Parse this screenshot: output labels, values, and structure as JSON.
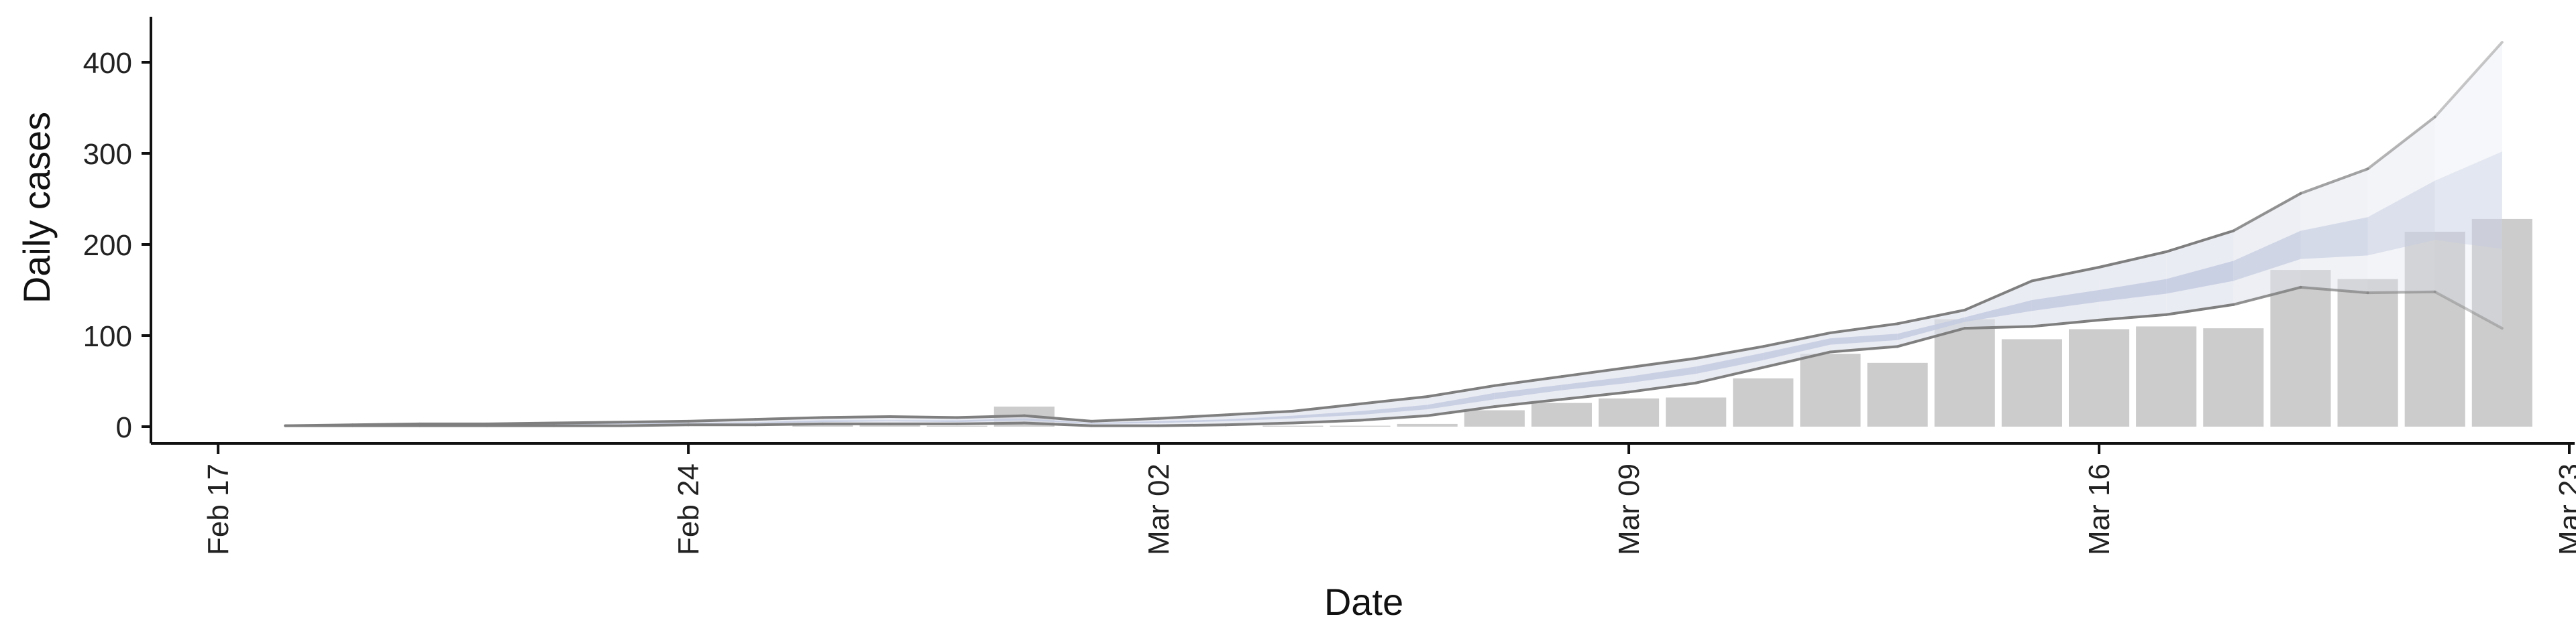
{
  "chart_data": {
    "type": "bar",
    "title": "",
    "xlabel": "Date",
    "ylabel": "Daily cases",
    "ylim": [
      -20,
      445
    ],
    "xlim": [
      "2020-02-16",
      "2020-03-23"
    ],
    "grid": false,
    "legend": "none",
    "yticks": [
      0,
      100,
      200,
      300,
      400
    ],
    "yticklabels": [
      "0",
      "100",
      "200",
      "300",
      "400"
    ],
    "xticks": [
      "2020-02-17",
      "2020-02-24",
      "2020-03-02",
      "2020-03-09",
      "2020-03-16",
      "2020-03-23"
    ],
    "xticklabels": [
      "Feb 17",
      "Feb 24",
      "Mar 02",
      "Mar 09",
      "Mar 16",
      "Mar 23"
    ],
    "colors": {
      "bars": "#cccccc",
      "outer_band": "#dfe2ec",
      "inner_band": "#c4cbe0",
      "lines": "#7f7f7f",
      "axis": "#111111"
    },
    "dates": [
      "2020-02-18",
      "2020-02-19",
      "2020-02-20",
      "2020-02-21",
      "2020-02-22",
      "2020-02-23",
      "2020-02-24",
      "2020-02-25",
      "2020-02-26",
      "2020-02-27",
      "2020-02-28",
      "2020-02-29",
      "2020-03-01",
      "2020-03-02",
      "2020-03-03",
      "2020-03-04",
      "2020-03-05",
      "2020-03-06",
      "2020-03-07",
      "2020-03-08",
      "2020-03-09",
      "2020-03-10",
      "2020-03-11",
      "2020-03-12",
      "2020-03-13",
      "2020-03-14",
      "2020-03-15",
      "2020-03-16",
      "2020-03-17",
      "2020-03-18",
      "2020-03-19",
      "2020-03-20",
      "2020-03-21",
      "2020-03-22"
    ],
    "daily_cases": [
      0,
      0,
      0,
      0,
      0,
      0,
      0,
      0,
      4,
      2,
      1,
      22,
      0,
      0,
      0,
      1,
      1,
      3,
      18,
      26,
      31,
      32,
      53,
      80,
      70,
      118,
      96,
      107,
      110,
      108,
      172,
      162,
      214,
      228
    ],
    "outer_lower": [
      1,
      1,
      1,
      1,
      1,
      1,
      2,
      2,
      3,
      3,
      3,
      4,
      1,
      1,
      2,
      4,
      7,
      12,
      22,
      30,
      38,
      48,
      65,
      82,
      88,
      108,
      110,
      117,
      123,
      134,
      153,
      147,
      148,
      108
    ],
    "outer_upper": [
      1,
      2,
      3,
      3,
      4,
      5,
      6,
      8,
      10,
      11,
      10,
      12,
      6,
      9,
      13,
      17,
      25,
      33,
      45,
      55,
      65,
      75,
      88,
      103,
      113,
      128,
      160,
      175,
      192,
      215,
      256,
      283,
      340,
      422
    ],
    "inner_lower": [
      1,
      1,
      2,
      2,
      2,
      3,
      3,
      4,
      5,
      6,
      5,
      7,
      3,
      4,
      6,
      9,
      13,
      19,
      30,
      40,
      48,
      58,
      73,
      90,
      95,
      115,
      127,
      137,
      146,
      160,
      184,
      188,
      205,
      195
    ],
    "inner_upper": [
      1,
      2,
      2,
      2,
      3,
      4,
      4,
      5,
      7,
      7,
      7,
      9,
      4,
      6,
      8,
      12,
      17,
      24,
      37,
      46,
      55,
      66,
      81,
      97,
      102,
      120,
      139,
      150,
      162,
      182,
      215,
      230,
      270,
      302
    ]
  }
}
